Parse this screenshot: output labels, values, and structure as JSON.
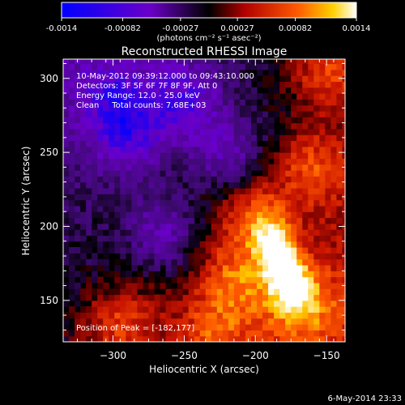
{
  "colorbar": {
    "tick_labels": [
      "-0.0014",
      "-0.00082",
      "-0.00027",
      "0.00027",
      "0.00082",
      "0.0014"
    ],
    "range": [
      -0.0014,
      0.0014
    ],
    "units": "(photons cm⁻² s⁻¹ asec⁻²)"
  },
  "title": "Reconstructed RHESSI Image",
  "annotations": {
    "time": "10-May-2012 09:39:12.000 to 09:43:10.000",
    "detectors": "Detectors: 3F 5F 6F 7F 8F 9F, Att 0",
    "energy": "Energy Range: 12.0 - 25.0 keV",
    "clean": "Clean     Total counts: 7.68E+03",
    "peak": "Position of Peak = [-182,177]"
  },
  "footer_date": "6-May-2014 23:33",
  "colors": {
    "negative": "#3a0090",
    "positive": "#ff3300",
    "peak": "#ffffcc",
    "frame": "#ffffff"
  },
  "chart_data": {
    "type": "heatmap",
    "title": "Reconstructed RHESSI Image",
    "xlabel": "Heliocentric X (arcsec)",
    "ylabel": "Heliocentric Y (arcsec)",
    "xlim": [
      -335,
      -137
    ],
    "ylim": [
      122,
      313
    ],
    "xticks": [
      -300,
      -250,
      -200,
      -150
    ],
    "yticks": [
      150,
      200,
      250,
      300
    ],
    "colormap": "blue-purple-black-red-yellow-white",
    "peak": {
      "x": -182,
      "y": 177
    },
    "sources": [
      {
        "x": -182,
        "y": 177,
        "value": 0.0014
      },
      {
        "x": -170,
        "y": 150,
        "value": 0.0008
      },
      {
        "x": -200,
        "y": 205,
        "value": 0.0007
      },
      {
        "x": -215,
        "y": 165,
        "value": 0.0006
      },
      {
        "x": -160,
        "y": 240,
        "value": 0.0006
      },
      {
        "x": -150,
        "y": 305,
        "value": 0.0007
      },
      {
        "x": -295,
        "y": 135,
        "value": 0.0006
      },
      {
        "x": -230,
        "y": 130,
        "value": 0.0005
      },
      {
        "x": -290,
        "y": 262,
        "value": -0.0007
      },
      {
        "x": -250,
        "y": 285,
        "value": -0.0007
      },
      {
        "x": -265,
        "y": 195,
        "value": -0.0006
      },
      {
        "x": -300,
        "y": 290,
        "value": -0.0005
      },
      {
        "x": -220,
        "y": 250,
        "value": -0.0006
      }
    ]
  }
}
